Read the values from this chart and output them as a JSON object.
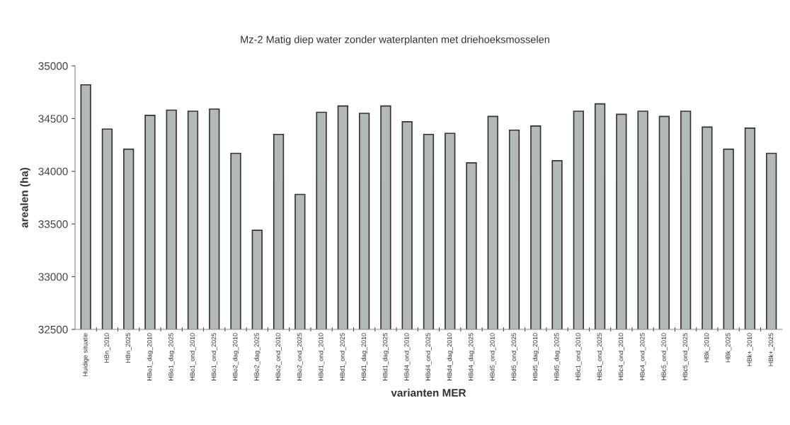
{
  "chart_data": {
    "type": "bar",
    "title": "Mz-2 Matig diep water zonder waterplanten met driehoeksmosselen",
    "xlabel": "varianten MER",
    "ylabel": "arealen (ha)",
    "categories": [
      "Huidige situatie",
      "HBn_2010",
      "HBn_2025",
      "HBo1_dag_2010",
      "HBo1_dag_2025",
      "HBo1_ond_2010",
      "HBo1_ond_2025",
      "HBo2_dag_2010",
      "HBo2_dag_2025",
      "HBo2_ond_2010",
      "HBo2_ond_2025",
      "HBd1_ond_2010",
      "HBd1_ond_2025",
      "HBd1_dag_2010",
      "HBd1_dag_2025",
      "HBd4_ond_2010",
      "HBd4_ond_2025",
      "HBd4_dag_2010",
      "HBd4_dag_2025",
      "HBd5_ond_2010",
      "HBd5_ond_2025",
      "HBd5_dag_2010",
      "HBd5_dag_2025",
      "HBc1_ond_2010",
      "HBc1_ond_2025",
      "HBc4_ond_2010",
      "HBc4_ond_2025",
      "HBc5_ond_2010",
      "HBc5_ond_2025",
      "HBk_2010",
      "HBk_2025",
      "HBk+_2010",
      "HBk+_2025"
    ],
    "values": [
      34820,
      34400,
      34210,
      34530,
      34580,
      34570,
      34590,
      34170,
      33440,
      34350,
      33780,
      34560,
      34620,
      34550,
      34620,
      34470,
      34350,
      34360,
      34080,
      34520,
      34390,
      34430,
      34100,
      34570,
      34640,
      34540,
      34570,
      34520,
      34570,
      34420,
      34210,
      34410,
      34170
    ],
    "color": "#b3b8b8",
    "ylim": [
      32500,
      35000
    ],
    "yticks": [
      32500,
      33000,
      33500,
      34000,
      34500,
      35000
    ],
    "grid": false,
    "legend": false
  }
}
